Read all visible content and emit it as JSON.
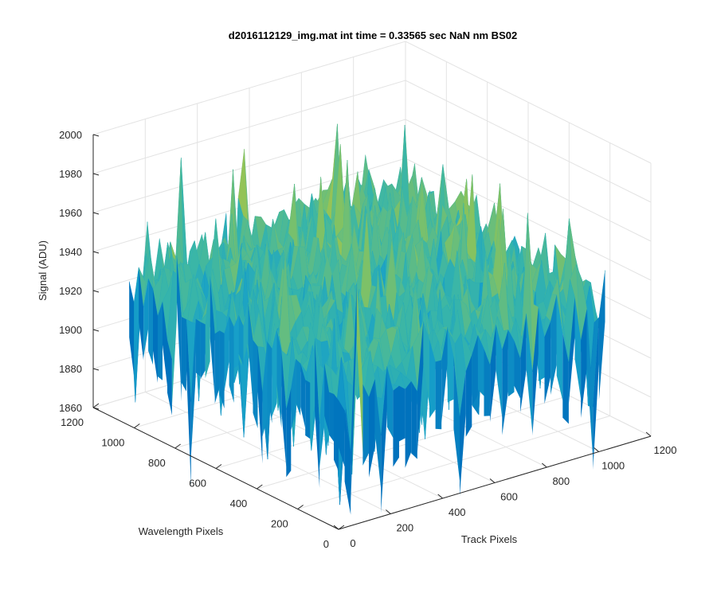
{
  "chart_data": {
    "type": "surface",
    "title": "d2016112129_img.mat int time = 0.33565 sec  NaN nm BS02",
    "xlabel": "Track Pixels",
    "ylabel": "Wavelength Pixels",
    "zlabel": "Signal (ADU)",
    "xlim": [
      0,
      1200
    ],
    "ylim": [
      0,
      1200
    ],
    "zlim": [
      1860,
      2000
    ],
    "x_ticks": [
      0,
      200,
      400,
      600,
      800,
      1000,
      1200
    ],
    "y_ticks": [
      0,
      200,
      400,
      600,
      800,
      1000,
      1200
    ],
    "z_ticks": [
      1860,
      1880,
      1900,
      1920,
      1940,
      1960,
      1980,
      2000
    ],
    "x_extent": [
      0,
      1024
    ],
    "y_extent": [
      0,
      1024
    ],
    "mean_signal": 1935,
    "signal_range": [
      1868,
      1996
    ],
    "grid": true,
    "colormap": [
      "#0072bd",
      "#17a0c9",
      "#39b6a8",
      "#8cc35a",
      "#d9c33f"
    ]
  }
}
